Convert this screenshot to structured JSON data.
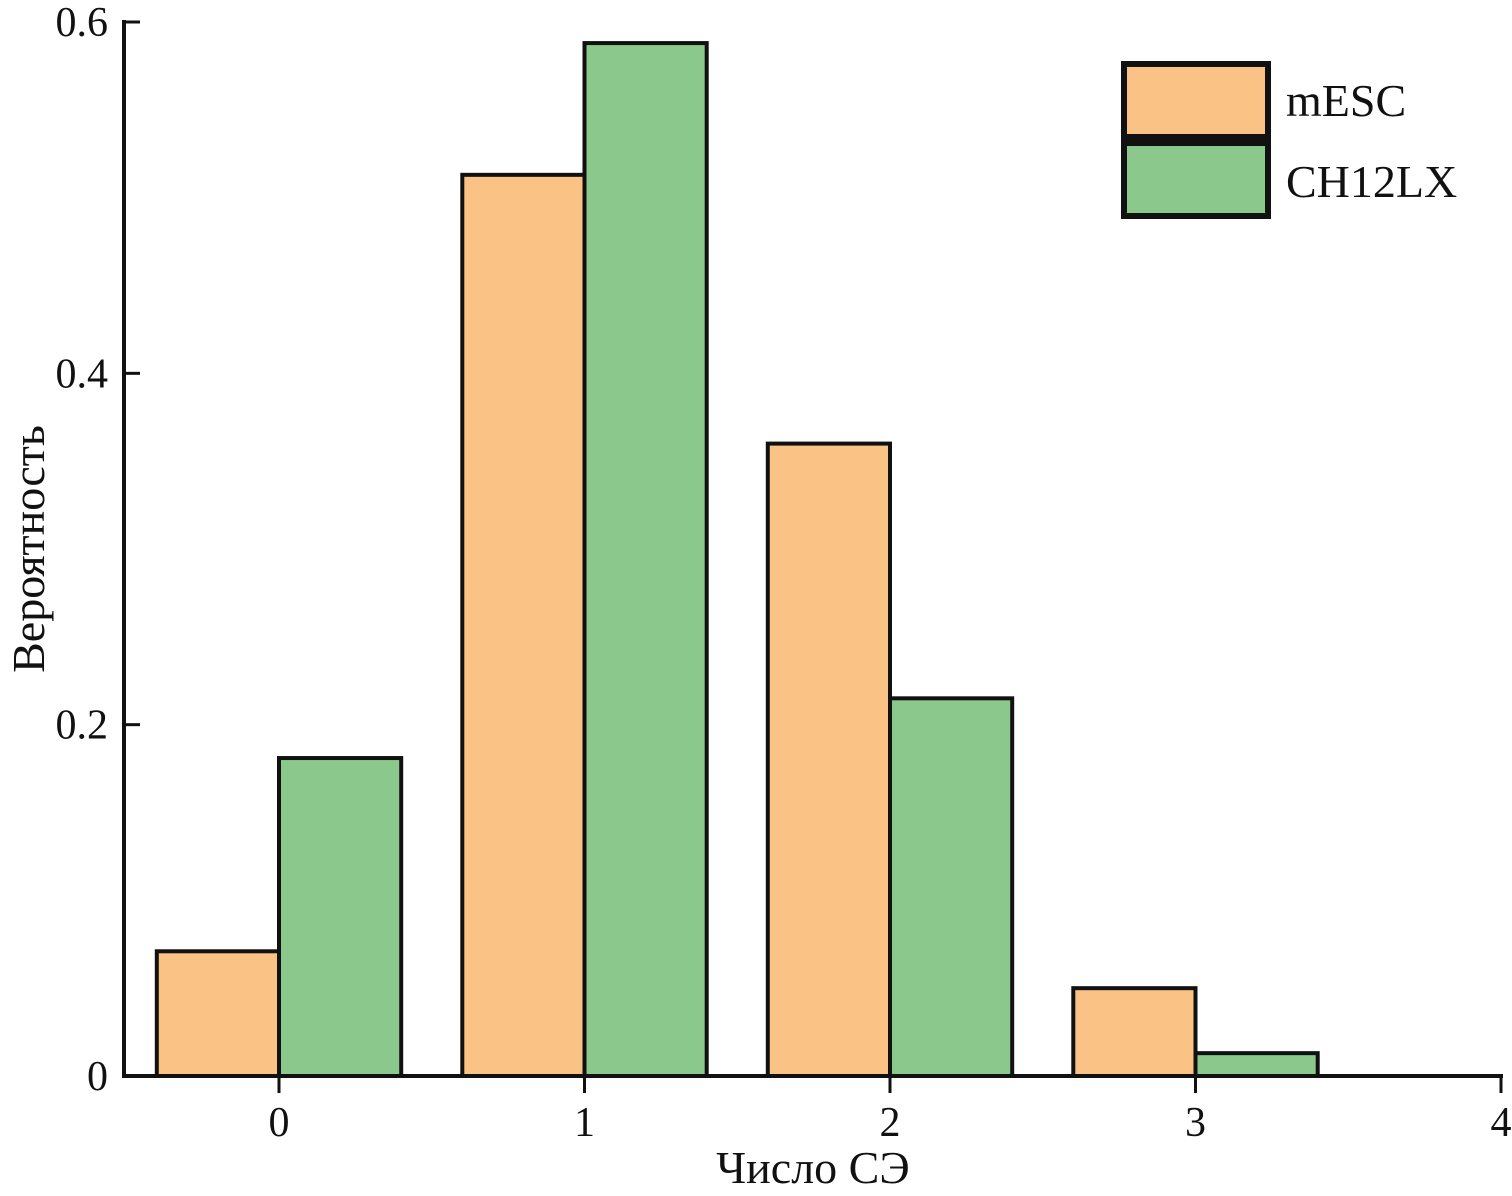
{
  "chart_data": {
    "type": "bar",
    "title": "",
    "xlabel": "Число СЭ",
    "ylabel": "Вероятность",
    "categories": [
      0,
      1,
      2,
      3
    ],
    "bar_width": 0.4,
    "series": [
      {
        "name": "mESC",
        "color": "#FAC285",
        "values": [
          0.071,
          0.513,
          0.36,
          0.05
        ]
      },
      {
        "name": "CH12LX",
        "color": "#8AC88B",
        "values": [
          0.181,
          0.588,
          0.215,
          0.013
        ]
      }
    ],
    "xlim": [
      -0.51,
      4
    ],
    "ylim": [
      0,
      0.6
    ],
    "x_ticks": {
      "values": [
        0,
        1,
        2,
        3,
        4
      ],
      "labels": [
        "0",
        "1",
        "2",
        "3",
        "4"
      ]
    },
    "y_ticks": {
      "values": [
        0,
        0.2,
        0.4,
        0.6
      ],
      "labels": [
        "0",
        "0.2",
        "0.4",
        "0.6"
      ]
    },
    "grid": false,
    "legend": {
      "position": "upper-right",
      "entries": [
        "mESC",
        "CH12LX"
      ]
    },
    "axis_color": "#111111",
    "bar_edge_color": "#111111"
  }
}
